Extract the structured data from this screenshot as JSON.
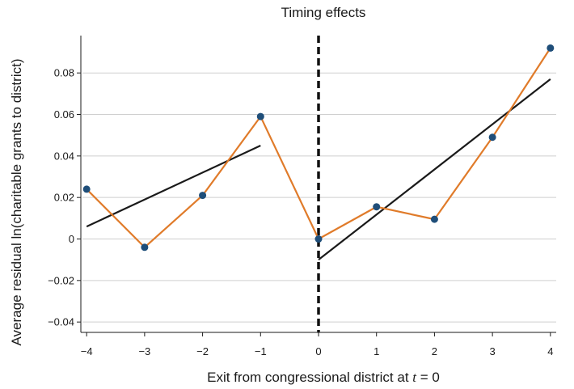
{
  "chart_data": {
    "type": "line",
    "title": "Timing effects",
    "xlabel": "Exit from congressional district at t = 0",
    "ylabel": "Average residual ln(charitable grants to district)",
    "xlim": [
      -4.1,
      4.1
    ],
    "ylim": [
      -0.045,
      0.098
    ],
    "x_ticks": [
      -4,
      -3,
      -2,
      -1,
      0,
      1,
      2,
      3,
      4
    ],
    "x_tick_labels": [
      "−4",
      "−3",
      "−2",
      "−1",
      "0",
      "1",
      "2",
      "3",
      "4"
    ],
    "y_ticks": [
      -0.04,
      -0.02,
      0,
      0.02,
      0.04,
      0.06,
      0.08
    ],
    "y_tick_labels": [
      "−0.04",
      "−0.02",
      "0",
      "0.02",
      "0.04",
      "0.06",
      "0.08"
    ],
    "grid": "horizontal",
    "series": [
      {
        "x": [
          -4,
          -3,
          -2,
          -1,
          0,
          1,
          2,
          3,
          4
        ],
        "y": [
          0.024,
          -0.004,
          0.021,
          0.059,
          0.0,
          0.0155,
          0.0095,
          0.049,
          0.092
        ]
      }
    ],
    "fit_lines": [
      {
        "x": [
          -4,
          -1
        ],
        "y": [
          0.006,
          0.045
        ]
      },
      {
        "x": [
          0,
          4
        ],
        "y": [
          -0.01,
          0.077
        ]
      }
    ],
    "vertical_line": {
      "x": 0,
      "style": "dashed"
    },
    "colors": {
      "series_line": "#e07b2a",
      "marker": "#1f4e79",
      "fit_line": "#1a1a1a",
      "grid": "#cfcfcf",
      "axis": "#1a1a1a"
    }
  }
}
